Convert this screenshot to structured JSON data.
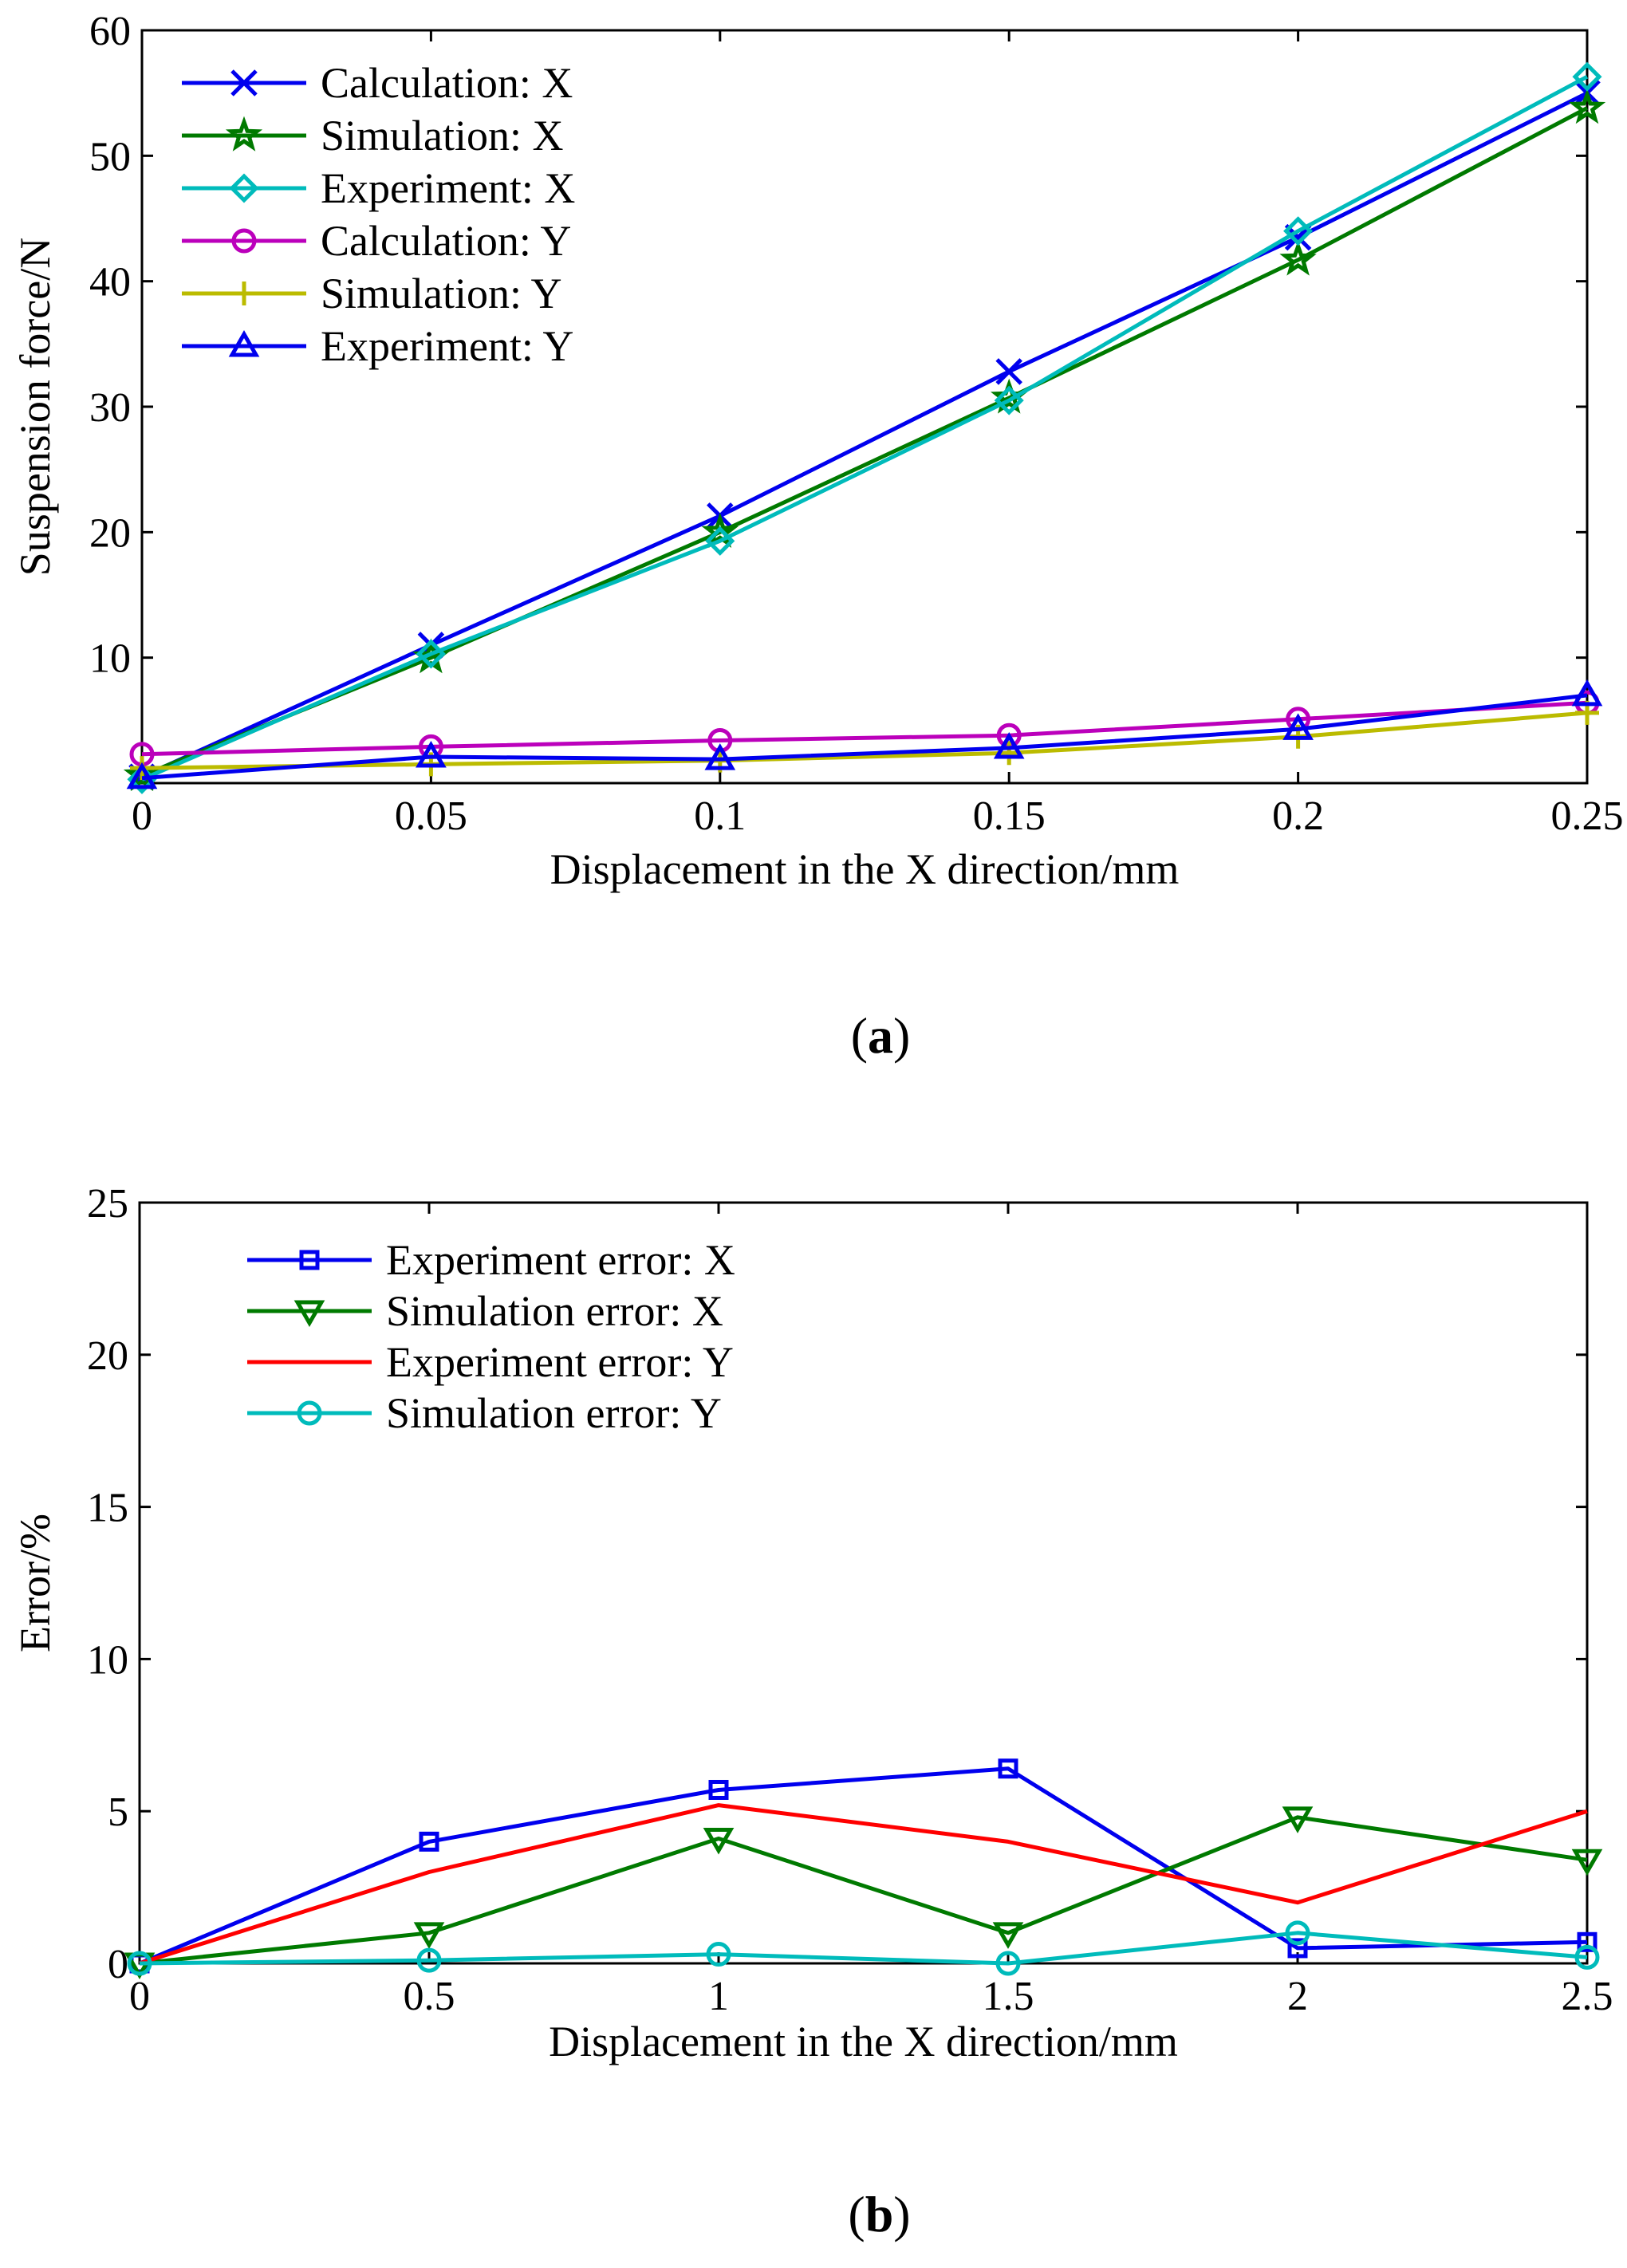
{
  "chart_data": [
    {
      "type": "line",
      "xlabel": "Displacement in the X direction/mm",
      "ylabel": "Suspension force/N",
      "xlim": [
        0,
        0.25
      ],
      "ylim": [
        0,
        60
      ],
      "x_ticks": [
        "0",
        "0.05",
        "0.1",
        "0.15",
        "0.2",
        "0.25"
      ],
      "y_ticks": [
        "10",
        "20",
        "30",
        "40",
        "50",
        "60"
      ],
      "y_tick_values": [
        10,
        20,
        30,
        40,
        50,
        60
      ],
      "x": [
        0,
        0.05,
        0.1,
        0.15,
        0.2,
        0.25
      ],
      "grid": false,
      "legend_position": "top-left",
      "series": [
        {
          "name": "Calculation: X",
          "values": [
            0.5,
            11,
            21.3,
            32.8,
            43.5,
            55
          ],
          "color": "#0000ee",
          "marker": "x"
        },
        {
          "name": "Simulation: X",
          "values": [
            0.6,
            10,
            20,
            30.7,
            41.7,
            53.8
          ],
          "color": "#007a00",
          "marker": "star"
        },
        {
          "name": "Experiment: X",
          "values": [
            0.3,
            10.3,
            19.3,
            30.5,
            44,
            56.3
          ],
          "color": "#00bbbb",
          "marker": "diamond"
        },
        {
          "name": "Calculation: Y",
          "values": [
            2.3,
            2.9,
            3.4,
            3.8,
            5.1,
            6.4
          ],
          "color": "#bb00bb",
          "marker": "circle"
        },
        {
          "name": "Simulation:  Y",
          "values": [
            1.2,
            1.5,
            1.8,
            2.4,
            3.7,
            5.6
          ],
          "color": "#bbbb00",
          "marker": "plus"
        },
        {
          "name": "Experiment: Y",
          "values": [
            0.4,
            2.1,
            1.9,
            2.8,
            4.3,
            7
          ],
          "color": "#0000ee",
          "marker": "triangle"
        }
      ],
      "caption": "a"
    },
    {
      "type": "line",
      "xlabel": "Displacement in the X direction/mm",
      "ylabel": "Error/%",
      "xlim": [
        0,
        2.5
      ],
      "ylim": [
        0,
        25
      ],
      "x_ticks": [
        "0",
        "0.5",
        "1",
        "1.5",
        "2",
        "2.5"
      ],
      "y_ticks": [
        "0",
        "5",
        "10",
        "15",
        "20",
        "25"
      ],
      "y_tick_values": [
        0,
        5,
        10,
        15,
        20,
        25
      ],
      "x": [
        0,
        0.5,
        1,
        1.5,
        2,
        2.5
      ],
      "grid": false,
      "legend_position": "top-left",
      "series": [
        {
          "name": "Experiment error: X",
          "values": [
            0,
            4,
            5.7,
            6.4,
            0.5,
            0.7
          ],
          "color": "#0000ee",
          "marker": "square"
        },
        {
          "name": "Simulation error: X",
          "values": [
            0,
            1,
            4.1,
            1,
            4.8,
            3.4
          ],
          "color": "#007a00",
          "marker": "triangle-down"
        },
        {
          "name": "Experiment error: Y",
          "values": [
            0,
            3,
            5.2,
            4,
            2,
            5
          ],
          "color": "#ff0000",
          "marker": "none"
        },
        {
          "name": "Simulation error: Y",
          "values": [
            0,
            0.1,
            0.3,
            0,
            1,
            0.2
          ],
          "color": "#00bbbb",
          "marker": "circle"
        }
      ],
      "caption": "b"
    }
  ]
}
